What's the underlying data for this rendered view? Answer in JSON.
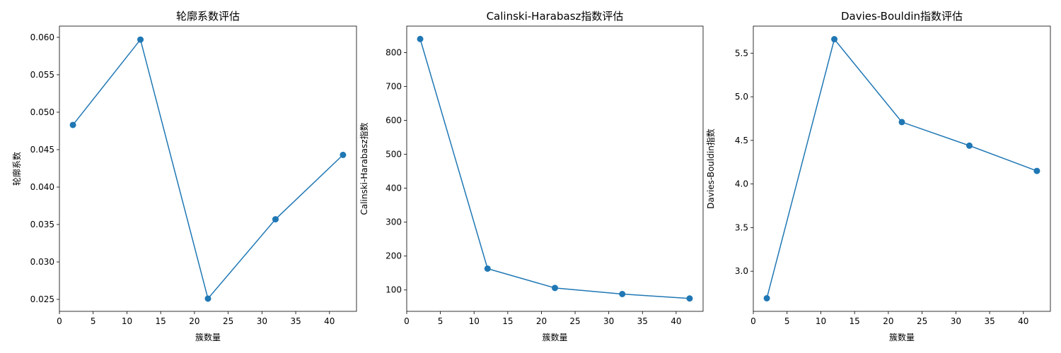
{
  "chart_data": [
    {
      "type": "line",
      "title": "轮廓系数评估",
      "xlabel": "簇数量",
      "ylabel": "轮廓系数",
      "x": [
        2,
        12,
        22,
        32,
        42
      ],
      "y": [
        0.0483,
        0.0597,
        0.0251,
        0.0357,
        0.0443
      ],
      "xlim": [
        0,
        44
      ],
      "ylim": [
        0.0234,
        0.0615
      ],
      "xticks": [
        0,
        5,
        10,
        15,
        20,
        25,
        30,
        35,
        40
      ],
      "yticks": [
        0.025,
        0.03,
        0.035,
        0.04,
        0.045,
        0.05,
        0.055,
        0.06
      ],
      "ytick_labels": [
        "0.025",
        "0.030",
        "0.035",
        "0.040",
        "0.045",
        "0.050",
        "0.055",
        "0.060"
      ],
      "color": "#1f77b4",
      "marker": "circle",
      "grid": false
    },
    {
      "type": "line",
      "title": "Calinski-Harabasz指数评估",
      "xlabel": "簇数量",
      "ylabel": "Calinski-Harabasz指数",
      "x": [
        2,
        12,
        22,
        32,
        42
      ],
      "y": [
        840,
        163,
        106,
        88,
        75
      ],
      "xlim": [
        0,
        44
      ],
      "ylim": [
        37,
        878
      ],
      "xticks": [
        0,
        5,
        10,
        15,
        20,
        25,
        30,
        35,
        40
      ],
      "yticks": [
        100,
        200,
        300,
        400,
        500,
        600,
        700,
        800
      ],
      "ytick_labels": [
        "100",
        "200",
        "300",
        "400",
        "500",
        "600",
        "700",
        "800"
      ],
      "color": "#1f77b4",
      "marker": "circle",
      "grid": false
    },
    {
      "type": "line",
      "title": "Davies-Bouldin指数评估",
      "xlabel": "簇数量",
      "ylabel": "Davies-Bouldin指数",
      "x": [
        2,
        12,
        22,
        32,
        42
      ],
      "y": [
        2.69,
        5.66,
        4.71,
        4.44,
        4.15
      ],
      "xlim": [
        0,
        44
      ],
      "ylim": [
        2.54,
        5.81
      ],
      "xticks": [
        0,
        5,
        10,
        15,
        20,
        25,
        30,
        35,
        40
      ],
      "yticks": [
        3.0,
        3.5,
        4.0,
        4.5,
        5.0,
        5.5
      ],
      "ytick_labels": [
        "3.0",
        "3.5",
        "4.0",
        "4.5",
        "5.0",
        "5.5"
      ],
      "color": "#1f77b4",
      "marker": "circle",
      "grid": false
    }
  ]
}
